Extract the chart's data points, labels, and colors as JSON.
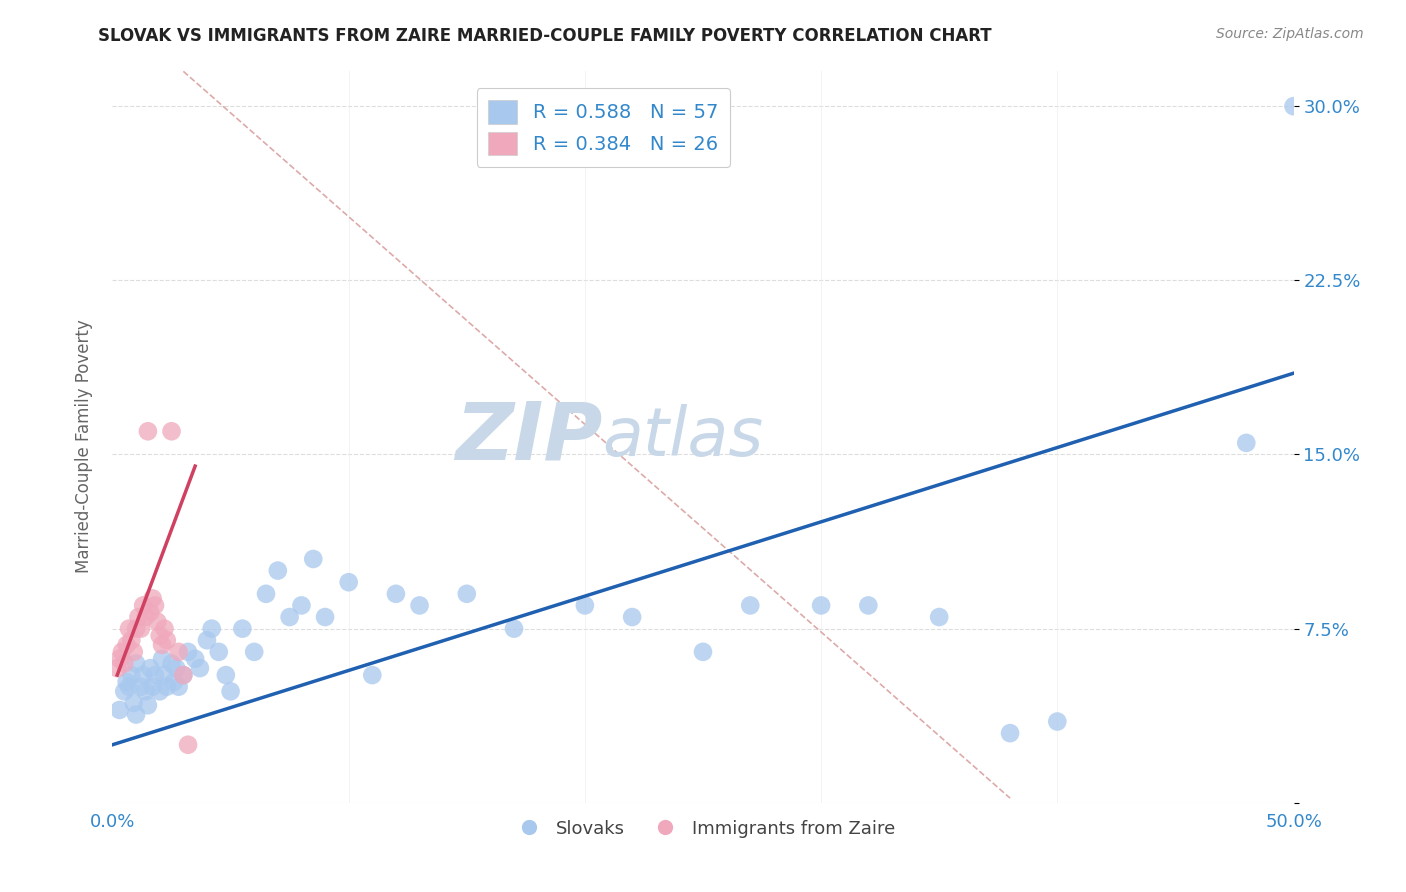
{
  "title": "SLOVAK VS IMMIGRANTS FROM ZAIRE MARRIED-COUPLE FAMILY POVERTY CORRELATION CHART",
  "source": "Source: ZipAtlas.com",
  "ylabel": "Married-Couple Family Poverty",
  "xlim": [
    0.0,
    0.5
  ],
  "ylim": [
    0.0,
    0.315
  ],
  "xticks": [
    0.0,
    0.1,
    0.2,
    0.3,
    0.4,
    0.5
  ],
  "xticklabels": [
    "0.0%",
    "",
    "",
    "",
    "",
    "50.0%"
  ],
  "yticks": [
    0.0,
    0.075,
    0.15,
    0.225,
    0.3
  ],
  "yticklabels": [
    "",
    "7.5%",
    "15.0%",
    "22.5%",
    "30.0%"
  ],
  "R_blue": 0.588,
  "N_blue": 57,
  "R_pink": 0.384,
  "N_pink": 26,
  "blue_color": "#A8C8EE",
  "blue_line_color": "#2060B0",
  "pink_color": "#F0A8BC",
  "pink_line_color": "#D04060",
  "grid_color": "#DDDDDD",
  "title_color": "#222222",
  "axis_label_color": "#666666",
  "tick_label_color": "#3388CC",
  "watermark_zip": "ZIP",
  "watermark_atlas": "atlas",
  "watermark_color": "#C8D8E8",
  "dashed_line_color": "#DDAAAA",
  "background_color": "#FFFFFF",
  "blue_scatter_x": [
    0.003,
    0.005,
    0.006,
    0.007,
    0.008,
    0.009,
    0.01,
    0.01,
    0.012,
    0.013,
    0.014,
    0.015,
    0.016,
    0.017,
    0.018,
    0.02,
    0.021,
    0.022,
    0.023,
    0.025,
    0.026,
    0.027,
    0.028,
    0.03,
    0.032,
    0.035,
    0.037,
    0.04,
    0.042,
    0.045,
    0.048,
    0.05,
    0.055,
    0.06,
    0.065,
    0.07,
    0.075,
    0.08,
    0.085,
    0.09,
    0.1,
    0.11,
    0.12,
    0.13,
    0.15,
    0.17,
    0.2,
    0.22,
    0.25,
    0.27,
    0.3,
    0.32,
    0.35,
    0.38,
    0.4,
    0.48,
    0.5
  ],
  "blue_scatter_y": [
    0.04,
    0.048,
    0.052,
    0.05,
    0.055,
    0.043,
    0.06,
    0.038,
    0.05,
    0.055,
    0.048,
    0.042,
    0.058,
    0.05,
    0.055,
    0.048,
    0.062,
    0.055,
    0.05,
    0.06,
    0.052,
    0.058,
    0.05,
    0.055,
    0.065,
    0.062,
    0.058,
    0.07,
    0.075,
    0.065,
    0.055,
    0.048,
    0.075,
    0.065,
    0.09,
    0.1,
    0.08,
    0.085,
    0.105,
    0.08,
    0.095,
    0.055,
    0.09,
    0.085,
    0.09,
    0.075,
    0.085,
    0.08,
    0.065,
    0.085,
    0.085,
    0.085,
    0.08,
    0.03,
    0.035,
    0.155,
    0.3
  ],
  "pink_scatter_x": [
    0.002,
    0.003,
    0.004,
    0.005,
    0.006,
    0.007,
    0.008,
    0.009,
    0.01,
    0.011,
    0.012,
    0.013,
    0.014,
    0.015,
    0.016,
    0.017,
    0.018,
    0.019,
    0.02,
    0.021,
    0.022,
    0.023,
    0.025,
    0.028,
    0.03,
    0.032
  ],
  "pink_scatter_y": [
    0.058,
    0.062,
    0.065,
    0.06,
    0.068,
    0.075,
    0.07,
    0.065,
    0.075,
    0.08,
    0.075,
    0.085,
    0.08,
    0.16,
    0.082,
    0.088,
    0.085,
    0.078,
    0.072,
    0.068,
    0.075,
    0.07,
    0.16,
    0.065,
    0.055,
    0.025
  ],
  "blue_line_x": [
    0.0,
    0.5
  ],
  "blue_line_y": [
    0.025,
    0.185
  ],
  "pink_line_x": [
    0.002,
    0.035
  ],
  "pink_line_y": [
    0.055,
    0.145
  ],
  "dashed_line_x": [
    0.03,
    0.38
  ],
  "dashed_line_y": [
    0.315,
    0.002
  ]
}
